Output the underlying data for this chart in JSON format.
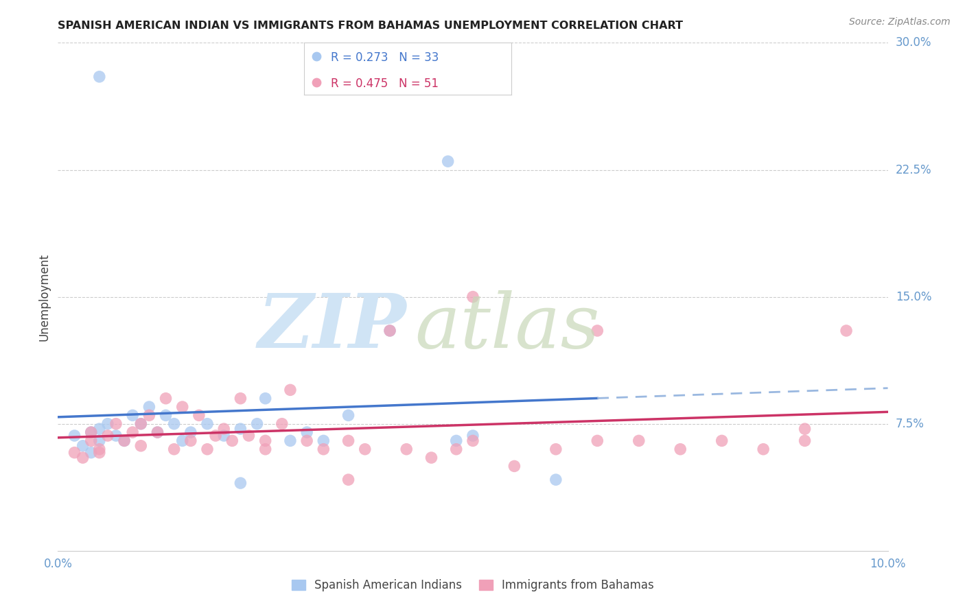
{
  "title": "SPANISH AMERICAN INDIAN VS IMMIGRANTS FROM BAHAMAS UNEMPLOYMENT CORRELATION CHART",
  "source": "Source: ZipAtlas.com",
  "ylabel": "Unemployment",
  "xlim": [
    0.0,
    0.1
  ],
  "ylim": [
    0.0,
    0.3
  ],
  "blue_R": 0.273,
  "blue_N": 33,
  "pink_R": 0.475,
  "pink_N": 51,
  "blue_color": "#a8c8f0",
  "pink_color": "#f0a0b8",
  "blue_line_color": "#4477cc",
  "pink_line_color": "#cc3366",
  "blue_dashed_color": "#9ab8e0",
  "tick_color": "#6699cc",
  "grid_color": "#cccccc",
  "blue_scatter_x": [
    0.002,
    0.003,
    0.004,
    0.004,
    0.005,
    0.005,
    0.006,
    0.007,
    0.008,
    0.009,
    0.01,
    0.011,
    0.012,
    0.013,
    0.014,
    0.015,
    0.016,
    0.018,
    0.02,
    0.022,
    0.024,
    0.025,
    0.028,
    0.03,
    0.032,
    0.035,
    0.04,
    0.048,
    0.05,
    0.06,
    0.005,
    0.047,
    0.022
  ],
  "blue_scatter_y": [
    0.068,
    0.062,
    0.07,
    0.058,
    0.065,
    0.072,
    0.075,
    0.068,
    0.065,
    0.08,
    0.075,
    0.085,
    0.07,
    0.08,
    0.075,
    0.065,
    0.07,
    0.075,
    0.068,
    0.072,
    0.075,
    0.09,
    0.065,
    0.07,
    0.065,
    0.08,
    0.13,
    0.065,
    0.068,
    0.042,
    0.28,
    0.23,
    0.04
  ],
  "pink_scatter_x": [
    0.002,
    0.003,
    0.004,
    0.004,
    0.005,
    0.006,
    0.007,
    0.008,
    0.009,
    0.01,
    0.01,
    0.011,
    0.012,
    0.013,
    0.014,
    0.015,
    0.016,
    0.017,
    0.018,
    0.019,
    0.02,
    0.021,
    0.022,
    0.023,
    0.025,
    0.027,
    0.028,
    0.03,
    0.032,
    0.035,
    0.037,
    0.04,
    0.042,
    0.045,
    0.048,
    0.05,
    0.055,
    0.06,
    0.065,
    0.07,
    0.075,
    0.08,
    0.085,
    0.09,
    0.095,
    0.035,
    0.05,
    0.065,
    0.09,
    0.005,
    0.025
  ],
  "pink_scatter_y": [
    0.058,
    0.055,
    0.065,
    0.07,
    0.06,
    0.068,
    0.075,
    0.065,
    0.07,
    0.075,
    0.062,
    0.08,
    0.07,
    0.09,
    0.06,
    0.085,
    0.065,
    0.08,
    0.06,
    0.068,
    0.072,
    0.065,
    0.09,
    0.068,
    0.06,
    0.075,
    0.095,
    0.065,
    0.06,
    0.065,
    0.06,
    0.13,
    0.06,
    0.055,
    0.06,
    0.065,
    0.05,
    0.06,
    0.065,
    0.065,
    0.06,
    0.065,
    0.06,
    0.065,
    0.13,
    0.042,
    0.15,
    0.13,
    0.072,
    0.058,
    0.065
  ]
}
